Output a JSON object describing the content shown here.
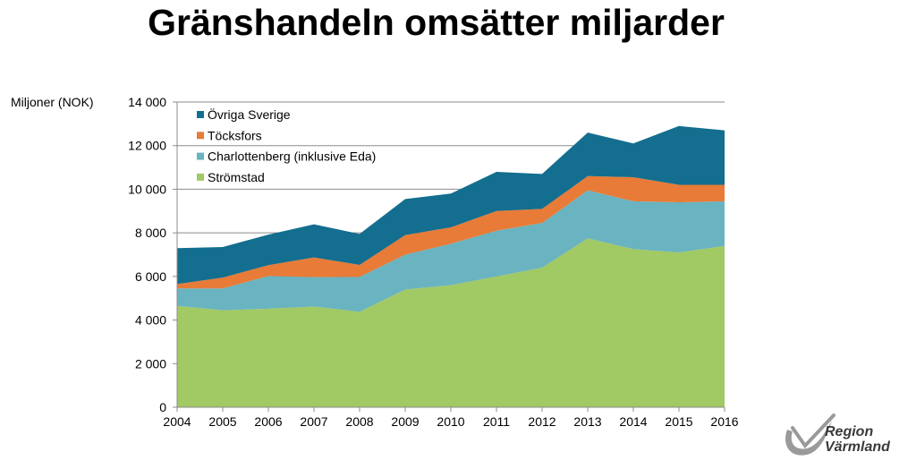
{
  "header": {
    "title": "Gränshandeln omsätter miljarder"
  },
  "logo": {
    "line1": "Region",
    "line2": "Värmland"
  },
  "chart_data": {
    "type": "area",
    "stacked": true,
    "title": "",
    "xlabel": "",
    "ylabel": "Miljoner (NOK)",
    "ylim": [
      0,
      14000
    ],
    "yticks": [
      0,
      2000,
      4000,
      6000,
      8000,
      10000,
      12000,
      14000
    ],
    "ytick_labels": [
      "0",
      "2 000",
      "4 000",
      "6 000",
      "8 000",
      "10 000",
      "12 000",
      "14 000"
    ],
    "categories": [
      "2004",
      "2005",
      "2006",
      "2007",
      "2008",
      "2009",
      "2010",
      "2011",
      "2012",
      "2013",
      "2014",
      "2015",
      "2016"
    ],
    "grid": true,
    "legend_position": "top-left",
    "series": [
      {
        "name": "Strömstad",
        "color": "#a1c964",
        "values": [
          4650,
          4450,
          4520,
          4620,
          4380,
          5400,
          5600,
          6000,
          6400,
          7750,
          7250,
          7100,
          7400
        ]
      },
      {
        "name": "Charlottenberg (inklusive Eda)",
        "color": "#6ab3c0",
        "values": [
          800,
          1000,
          1500,
          1350,
          1600,
          1600,
          1900,
          2100,
          2050,
          2200,
          2200,
          2300,
          2050
        ]
      },
      {
        "name": "Töcksfors",
        "color": "#e77b37",
        "values": [
          200,
          500,
          500,
          900,
          550,
          900,
          750,
          900,
          650,
          650,
          1100,
          800,
          750
        ]
      },
      {
        "name": "Övriga Sverige",
        "color": "#136e8f",
        "values": [
          1650,
          1400,
          1400,
          1520,
          1420,
          1650,
          1550,
          1800,
          1600,
          2000,
          1550,
          2700,
          2500
        ]
      }
    ],
    "legend_order": [
      "Övriga Sverige",
      "Töcksfors",
      "Charlottenberg (inklusive Eda)",
      "Strömstad"
    ]
  }
}
